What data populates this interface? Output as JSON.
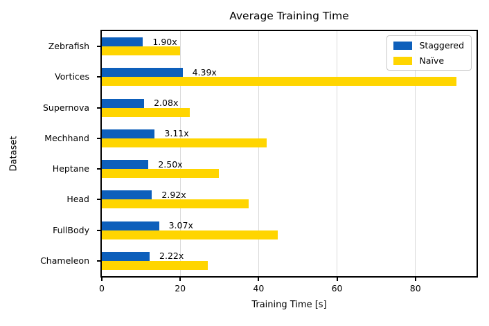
{
  "figure": {
    "background": "#ffffff",
    "spine_color": "#000000"
  },
  "chart_data": {
    "type": "bar",
    "orientation": "horizontal",
    "title": "Average Training Time",
    "xlabel": "Training Time [s]",
    "ylabel": "Dataset",
    "categories": [
      "Zebrafish",
      "Vortices",
      "Supernova",
      "Mechhand",
      "Heptane",
      "Head",
      "FullBody",
      "Chameleon"
    ],
    "series": [
      {
        "name": "Staggered",
        "color": "#0d5fbb",
        "values": [
          10.5,
          20.6,
          10.8,
          13.5,
          11.9,
          12.8,
          14.6,
          12.2
        ]
      },
      {
        "name": "Naïve",
        "color": "#ffd500",
        "values": [
          20.0,
          90.5,
          22.5,
          42.0,
          29.8,
          37.4,
          44.8,
          27.1
        ]
      }
    ],
    "annotations": [
      "1.90x",
      "4.39x",
      "2.08x",
      "3.11x",
      "2.50x",
      "2.92x",
      "3.07x",
      "2.22x"
    ],
    "xticks": [
      0,
      20,
      40,
      60,
      80
    ],
    "xlim": [
      0,
      95.6
    ],
    "grid": true,
    "grid_color": "#d9d9d9",
    "legend": {
      "position": "upper right"
    }
  }
}
